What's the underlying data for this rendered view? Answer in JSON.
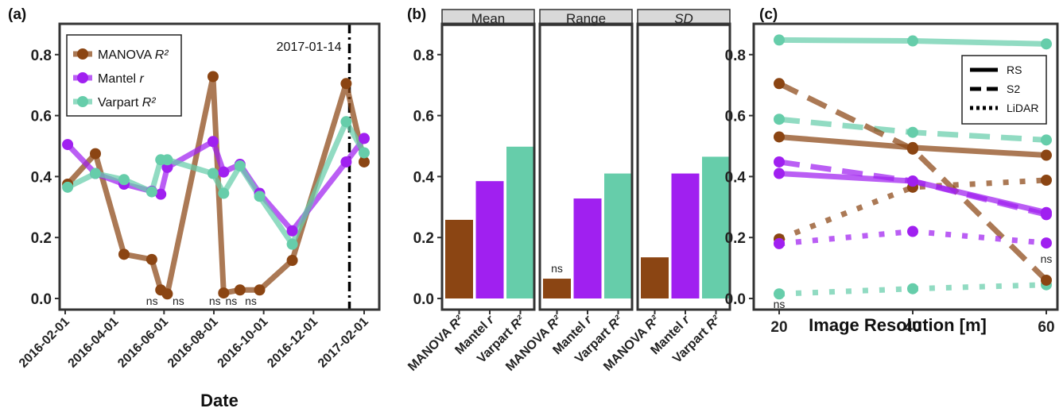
{
  "colors": {
    "manova": "#8B4513",
    "mantel": "#A020F0",
    "varpart": "#66CDAA"
  },
  "chart_data": [
    {
      "panel": "(a)",
      "type": "line",
      "xlabel": "Date",
      "ylabel": "",
      "ylim": [
        0,
        0.88
      ],
      "x_tick_labels": [
        "2016-02-01",
        "2016-04-01",
        "2016-06-01",
        "2016-08-01",
        "2016-10-01",
        "2016-12-01",
        "2017-02-01"
      ],
      "y_tick_labels": [
        "0.0",
        "0.2",
        "0.4",
        "0.6",
        "0.8"
      ],
      "legend": {
        "placement": "top-left",
        "entries": [
          {
            "label": "MANOVA ",
            "suffix": "R²",
            "key": "manova"
          },
          {
            "label": "Mantel ",
            "suffix": "r",
            "key": "mantel"
          },
          {
            "label": "Varpart ",
            "suffix": "R²",
            "key": "varpart"
          }
        ]
      },
      "vline": {
        "x": "2017-01-14",
        "label": "2017-01-14"
      },
      "series": [
        {
          "key": "manova",
          "name": "MANOVA R²",
          "x": [
            "2016-02-04",
            "2016-03-09",
            "2016-04-13",
            "2016-05-17",
            "2016-05-28",
            "2016-06-05",
            "2016-07-31",
            "2016-08-13",
            "2016-09-02",
            "2016-09-26",
            "2016-11-05",
            "2017-01-10",
            "2017-02-01"
          ],
          "y": [
            0.375,
            0.475,
            0.145,
            0.128,
            0.028,
            0.015,
            0.728,
            0.018,
            0.028,
            0.028,
            0.125,
            0.705,
            0.448
          ],
          "ns": [
            false,
            false,
            false,
            false,
            true,
            true,
            false,
            true,
            true,
            true,
            false,
            false,
            false
          ]
        },
        {
          "key": "mantel",
          "name": "Mantel r",
          "x": [
            "2016-02-04",
            "2016-03-09",
            "2016-04-13",
            "2016-05-17",
            "2016-05-28",
            "2016-06-05",
            "2016-07-31",
            "2016-08-13",
            "2016-09-02",
            "2016-09-26",
            "2016-11-05",
            "2017-01-10",
            "2017-02-01"
          ],
          "y": [
            0.505,
            0.41,
            0.375,
            0.352,
            0.342,
            0.43,
            0.515,
            0.415,
            0.44,
            0.345,
            0.222,
            0.448,
            0.525
          ]
        },
        {
          "key": "varpart",
          "name": "Varpart R²",
          "x": [
            "2016-02-04",
            "2016-03-09",
            "2016-04-13",
            "2016-05-17",
            "2016-05-28",
            "2016-06-05",
            "2016-07-31",
            "2016-08-13",
            "2016-09-02",
            "2016-09-26",
            "2016-11-05",
            "2017-01-10",
            "2017-02-01"
          ],
          "y": [
            0.365,
            0.41,
            0.39,
            0.35,
            0.455,
            0.455,
            0.41,
            0.345,
            0.435,
            0.335,
            0.178,
            0.58,
            0.478
          ]
        }
      ]
    },
    {
      "panel": "(b)",
      "type": "bar",
      "ylim": [
        0,
        0.88
      ],
      "y_tick_labels": [
        "0.0",
        "0.2",
        "0.4",
        "0.6",
        "0.8"
      ],
      "facets": [
        {
          "strip": "Mean",
          "italic": false,
          "values": [
            0.258,
            0.385,
            0.498
          ],
          "ns": [
            false,
            false,
            false
          ]
        },
        {
          "strip": "Range",
          "italic": false,
          "values": [
            0.065,
            0.328,
            0.41
          ],
          "ns": [
            true,
            false,
            false
          ]
        },
        {
          "strip": "SD",
          "italic": true,
          "values": [
            0.135,
            0.41,
            0.465
          ],
          "ns": [
            false,
            false,
            false
          ]
        }
      ],
      "categories": [
        {
          "label": "MANOVA ",
          "suffix": "R²",
          "key": "manova"
        },
        {
          "label": "Mantel ",
          "suffix": "r",
          "key": "mantel"
        },
        {
          "label": "Varpart ",
          "suffix": "R²",
          "key": "varpart"
        }
      ]
    },
    {
      "panel": "(c)",
      "type": "line",
      "xlabel": "Image Resolution [m]",
      "xlim": [
        18,
        62
      ],
      "ylim": [
        0,
        0.88
      ],
      "x_ticks": [
        20,
        40,
        60
      ],
      "y_tick_labels": [
        "0.0",
        "0.2",
        "0.4",
        "0.6",
        "0.8"
      ],
      "legend": {
        "placement": "top-right",
        "entries": [
          {
            "label": "RS",
            "style": "solid"
          },
          {
            "label": "S2",
            "style": "dashed"
          },
          {
            "label": "LiDAR",
            "style": "dotted"
          }
        ]
      },
      "series": [
        {
          "key": "varpart",
          "style": "solid",
          "x": [
            20,
            40,
            60
          ],
          "y": [
            0.848,
            0.845,
            0.835
          ]
        },
        {
          "key": "varpart",
          "style": "dashed",
          "x": [
            20,
            40,
            60
          ],
          "y": [
            0.588,
            0.545,
            0.52
          ]
        },
        {
          "key": "varpart",
          "style": "dotted",
          "x": [
            20,
            40,
            60
          ],
          "y": [
            0.015,
            0.032,
            0.045
          ],
          "ns": [
            true,
            false,
            false
          ]
        },
        {
          "key": "manova",
          "style": "solid",
          "x": [
            20,
            40,
            60
          ],
          "y": [
            0.53,
            0.495,
            0.47
          ]
        },
        {
          "key": "manova",
          "style": "dashed",
          "x": [
            20,
            40,
            60
          ],
          "y": [
            0.705,
            0.49,
            0.06
          ],
          "ns": [
            false,
            false,
            true
          ]
        },
        {
          "key": "manova",
          "style": "dotted",
          "x": [
            20,
            40,
            60
          ],
          "y": [
            0.195,
            0.365,
            0.388
          ]
        },
        {
          "key": "mantel",
          "style": "solid",
          "x": [
            20,
            40,
            60
          ],
          "y": [
            0.41,
            0.385,
            0.282
          ]
        },
        {
          "key": "mantel",
          "style": "dashed",
          "x": [
            20,
            40,
            60
          ],
          "y": [
            0.448,
            0.385,
            0.275
          ]
        },
        {
          "key": "mantel",
          "style": "dotted",
          "x": [
            20,
            40,
            60
          ],
          "y": [
            0.18,
            0.22,
            0.182
          ]
        }
      ]
    }
  ],
  "labels": {
    "ns": "ns"
  }
}
